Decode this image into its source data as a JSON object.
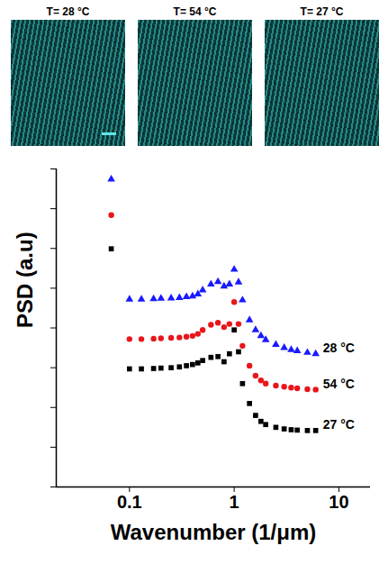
{
  "image_titles": [
    "T= 28 °C",
    "T= 54 °C",
    "T= 27 °C"
  ],
  "chart_data": {
    "type": "scatter",
    "x_label": "Wavenumber (1/μm)",
    "y_label": "PSD (a.u)",
    "log": "x",
    "tick_labels": "x",
    "xlim": [
      0.02,
      20
    ],
    "xticks": [
      0.1,
      1,
      10
    ],
    "ylim": [
      0,
      8
    ],
    "yticks": [
      0,
      1,
      2,
      3,
      4,
      5,
      6,
      7,
      8
    ],
    "x": [
      0.067,
      0.1,
      0.13,
      0.17,
      0.2,
      0.25,
      0.3,
      0.35,
      0.4,
      0.45,
      0.5,
      0.6,
      0.7,
      0.8,
      0.9,
      1.0,
      1.1,
      1.2,
      1.4,
      1.6,
      1.8,
      2,
      2.5,
      3,
      3.5,
      4,
      5,
      6
    ],
    "series": [
      {
        "name": "28 °C",
        "color": "#1a1aff",
        "marker": "triangle",
        "values": [
          7.74,
          4.72,
          4.72,
          4.73,
          4.74,
          4.75,
          4.76,
          4.78,
          4.8,
          4.85,
          4.95,
          5.1,
          5.16,
          5.05,
          5.1,
          5.47,
          5.15,
          4.7,
          4.2,
          3.95,
          3.8,
          3.7,
          3.58,
          3.5,
          3.45,
          3.42,
          3.38,
          3.35
        ]
      },
      {
        "name": "54 °C",
        "color": "#e8161b",
        "marker": "circle",
        "values": [
          6.84,
          3.72,
          3.72,
          3.73,
          3.74,
          3.75,
          3.76,
          3.78,
          3.8,
          3.85,
          3.95,
          4.08,
          4.13,
          4.02,
          4.1,
          4.65,
          4.1,
          3.55,
          3.05,
          2.8,
          2.68,
          2.6,
          2.55,
          2.52,
          2.5,
          2.48,
          2.46,
          2.45
        ]
      },
      {
        "name": "27 °C",
        "color": "#000000",
        "marker": "square",
        "values": [
          5.99,
          2.97,
          2.97,
          2.98,
          2.99,
          3.0,
          3.02,
          3.05,
          3.08,
          3.12,
          3.18,
          3.26,
          3.28,
          3.15,
          3.35,
          3.95,
          3.4,
          2.6,
          2.1,
          1.8,
          1.65,
          1.57,
          1.5,
          1.46,
          1.44,
          1.43,
          1.42,
          1.42
        ]
      }
    ]
  }
}
